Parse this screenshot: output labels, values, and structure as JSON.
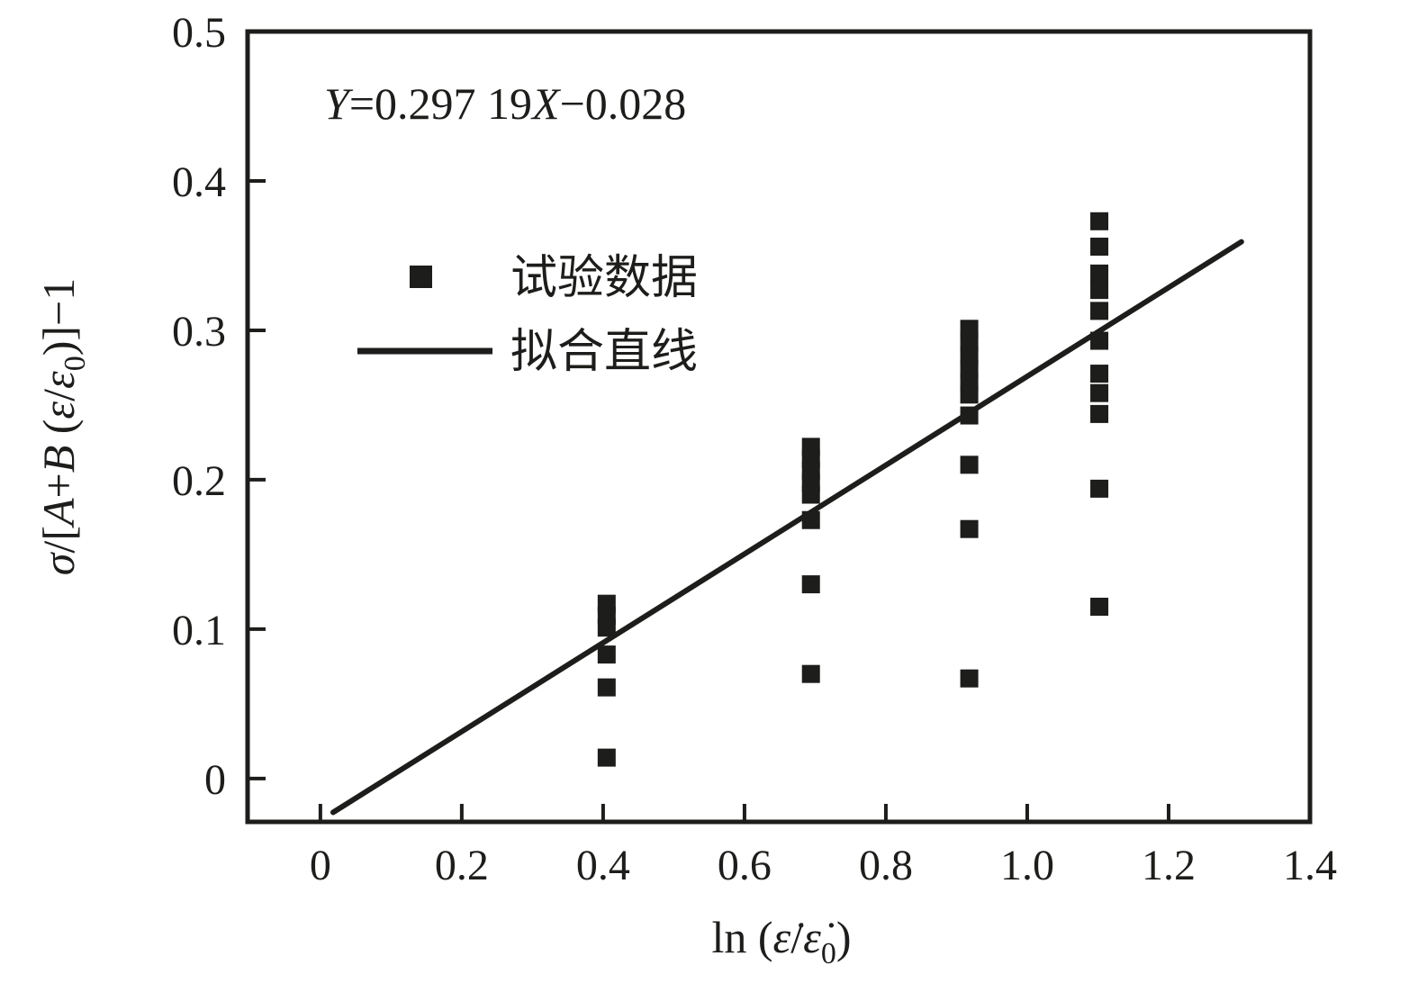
{
  "figure": {
    "background": "#ffffff",
    "ink_color": "#1d1d1b"
  },
  "chart_data": {
    "type": "scatter",
    "title": "",
    "equation_label": "Y=0.297 19X−0.028",
    "equation_parts": {
      "y_var": "Y",
      "body": "=0.297 19",
      "x_var": "X",
      "tail": "−0.028"
    },
    "xlabel": "ln (ε̇/ε̇₀)",
    "xlabel_parts": {
      "prefix": "ln (",
      "eps1": "ε̇",
      "slash": "/",
      "eps2": "ε̇",
      "sub": "0",
      "suffix": ")"
    },
    "ylabel": "σ/[A+B (ε/ε₀)]−1",
    "ylabel_parts": {
      "sigma": "σ",
      "open": "/[",
      "a": "A",
      "plus": "+",
      "b": "B",
      "paren": " (",
      "eps1": "ε",
      "slash": "/",
      "eps2": "ε",
      "sub": "0",
      "tail": ")]−1"
    },
    "xlim": [
      -0.103,
      1.4
    ],
    "ylim": [
      -0.029,
      0.5
    ],
    "x_ticks": [
      0,
      0.2,
      0.4,
      0.6,
      0.8,
      1.0,
      1.2,
      1.4
    ],
    "x_tick_labels": [
      "0",
      "0.2",
      "0.4",
      "0.6",
      "0.8",
      "1.0",
      "1.2",
      "1.4"
    ],
    "y_ticks": [
      0,
      0.1,
      0.2,
      0.3,
      0.4,
      0.5
    ],
    "y_tick_labels": [
      "0",
      "0.1",
      "0.2",
      "0.3",
      "0.4",
      "0.5"
    ],
    "grid": false,
    "legend": {
      "position": "upper-left",
      "items": [
        {
          "label": "试验数据",
          "marker": "square"
        },
        {
          "label": "拟合直线",
          "marker": "line"
        }
      ]
    },
    "fit_line": {
      "slope": 0.29719,
      "intercept": -0.028,
      "x_start": 0.018,
      "x_end": 1.303
    },
    "series": [
      {
        "name": "试验数据",
        "marker": "square",
        "clusters": [
          {
            "x": 0.405,
            "y": [
              0.117,
              0.109,
              0.101,
              0.083,
              0.061,
              0.014
            ]
          },
          {
            "x": 0.694,
            "y": [
              0.222,
              0.214,
              0.206,
              0.198,
              0.19,
              0.173,
              0.13,
              0.07
            ]
          },
          {
            "x": 0.918,
            "y": [
              0.301,
              0.292,
              0.283,
              0.274,
              0.265,
              0.257,
              0.243,
              0.21,
              0.167,
              0.067
            ]
          },
          {
            "x": 1.102,
            "y": [
              0.373,
              0.356,
              0.338,
              0.327,
              0.313,
              0.293,
              0.271,
              0.258,
              0.244,
              0.194,
              0.115
            ]
          }
        ]
      }
    ]
  }
}
